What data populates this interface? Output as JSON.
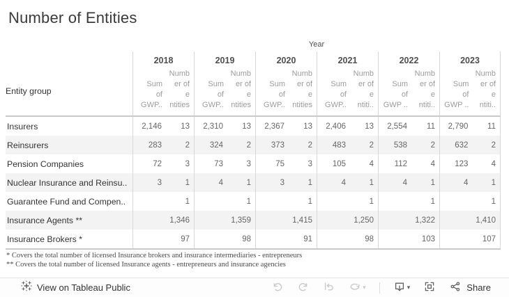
{
  "title": "Number of Entities",
  "table": {
    "year_axis_label": "Year",
    "row_header_label": "Entity group",
    "years": [
      {
        "label": "2018",
        "gwp_lines": [
          "Sum",
          "of",
          "GWP.."
        ],
        "ent_lines": [
          "Numb",
          "er of e",
          "ntities"
        ]
      },
      {
        "label": "2019",
        "gwp_lines": [
          "Sum",
          "of",
          "GWP.."
        ],
        "ent_lines": [
          "Numb",
          "er of e",
          "ntities"
        ]
      },
      {
        "label": "2020",
        "gwp_lines": [
          "Sum",
          "of",
          "GWP.."
        ],
        "ent_lines": [
          "Numb",
          "er of e",
          "ntities"
        ]
      },
      {
        "label": "2021",
        "gwp_lines": [
          "Sum",
          "of",
          "GWP.."
        ],
        "ent_lines": [
          "Numb",
          "er of e",
          "ntiti.."
        ]
      },
      {
        "label": "2022",
        "gwp_lines": [
          "Sum",
          "of",
          "GWP .."
        ],
        "ent_lines": [
          "Numb",
          "er of e",
          "ntiti.."
        ]
      },
      {
        "label": "2023",
        "gwp_lines": [
          "Sum",
          "of",
          "GWP .."
        ],
        "ent_lines": [
          "Numb",
          "er of e",
          "ntiti.."
        ]
      }
    ],
    "rows": [
      {
        "label": "Insurers",
        "values": [
          "2,146",
          "13",
          "2,310",
          "13",
          "2,367",
          "13",
          "2,406",
          "13",
          "2,554",
          "11",
          "2,790",
          "11"
        ]
      },
      {
        "label": "Reinsurers",
        "values": [
          "283",
          "2",
          "324",
          "2",
          "373",
          "2",
          "483",
          "2",
          "538",
          "2",
          "632",
          "2"
        ]
      },
      {
        "label": "Pension Companies",
        "values": [
          "72",
          "3",
          "73",
          "3",
          "75",
          "3",
          "105",
          "4",
          "112",
          "4",
          "123",
          "4"
        ]
      },
      {
        "label": "Nuclear Insurance and Reinsu..",
        "values": [
          "3",
          "1",
          "4",
          "1",
          "3",
          "1",
          "4",
          "1",
          "4",
          "1",
          "4",
          "1"
        ]
      },
      {
        "label": "Guarantee Fund and Compen..",
        "values": [
          "",
          "1",
          "",
          "1",
          "",
          "1",
          "",
          "1",
          "",
          "1",
          "",
          "1"
        ]
      },
      {
        "label": "Insurance Agents **",
        "values": [
          "",
          "1,346",
          "",
          "1,359",
          "",
          "1,415",
          "",
          "1,250",
          "",
          "1,322",
          "",
          "1,410"
        ]
      },
      {
        "label": "Insurance Brokers *",
        "values": [
          "",
          "97",
          "",
          "98",
          "",
          "91",
          "",
          "98",
          "",
          "103",
          "",
          "107"
        ]
      }
    ]
  },
  "chart_data": {
    "type": "table",
    "title": "Number of Entities",
    "column_groups": [
      "2018",
      "2019",
      "2020",
      "2021",
      "2022",
      "2023"
    ],
    "sub_columns": [
      "Sum of GWP",
      "Number of entities"
    ],
    "rows": [
      {
        "entity_group": "Insurers",
        "sum_gwp": [
          2146,
          2310,
          2367,
          2406,
          2554,
          2790
        ],
        "num_entities": [
          13,
          13,
          13,
          13,
          11,
          11
        ]
      },
      {
        "entity_group": "Reinsurers",
        "sum_gwp": [
          283,
          324,
          373,
          483,
          538,
          632
        ],
        "num_entities": [
          2,
          2,
          2,
          2,
          2,
          2
        ]
      },
      {
        "entity_group": "Pension Companies",
        "sum_gwp": [
          72,
          73,
          75,
          105,
          112,
          123
        ],
        "num_entities": [
          3,
          3,
          3,
          4,
          4,
          4
        ]
      },
      {
        "entity_group": "Nuclear Insurance and Reinsurance",
        "sum_gwp": [
          3,
          4,
          3,
          4,
          4,
          4
        ],
        "num_entities": [
          1,
          1,
          1,
          1,
          1,
          1
        ]
      },
      {
        "entity_group": "Guarantee Fund and Compensation",
        "sum_gwp": [
          null,
          null,
          null,
          null,
          null,
          null
        ],
        "num_entities": [
          1,
          1,
          1,
          1,
          1,
          1
        ]
      },
      {
        "entity_group": "Insurance Agents **",
        "sum_gwp": [
          null,
          null,
          null,
          null,
          null,
          null
        ],
        "num_entities": [
          1346,
          1359,
          1415,
          1250,
          1322,
          1410
        ]
      },
      {
        "entity_group": "Insurance Brokers *",
        "sum_gwp": [
          null,
          null,
          null,
          null,
          null,
          null
        ],
        "num_entities": [
          97,
          98,
          91,
          98,
          103,
          107
        ]
      }
    ]
  },
  "footnotes": [
    "* Covers the total number of licensed Insurance brokers and insurance intermediaries - entrepreneurs",
    "** Covers the total number of licensed Insurance agents - entrepreneurs and insurance agencies"
  ],
  "toolbar": {
    "view_label": "View on Tableau Public",
    "share_label": "Share",
    "icons": [
      "tableau-logo",
      "undo",
      "redo",
      "revert",
      "refresh",
      "download",
      "fullscreen",
      "share"
    ]
  },
  "colors": {
    "row_band": "#f3f3f3",
    "grid_line": "#d8d8d8",
    "header_rule": "#c9c9c9",
    "subheader_text": "#9b9b9b",
    "value_text": "#656565",
    "label_text": "#333333",
    "disabled_icon": "#c9c9c9",
    "active_icon": "#5f5f5f"
  }
}
